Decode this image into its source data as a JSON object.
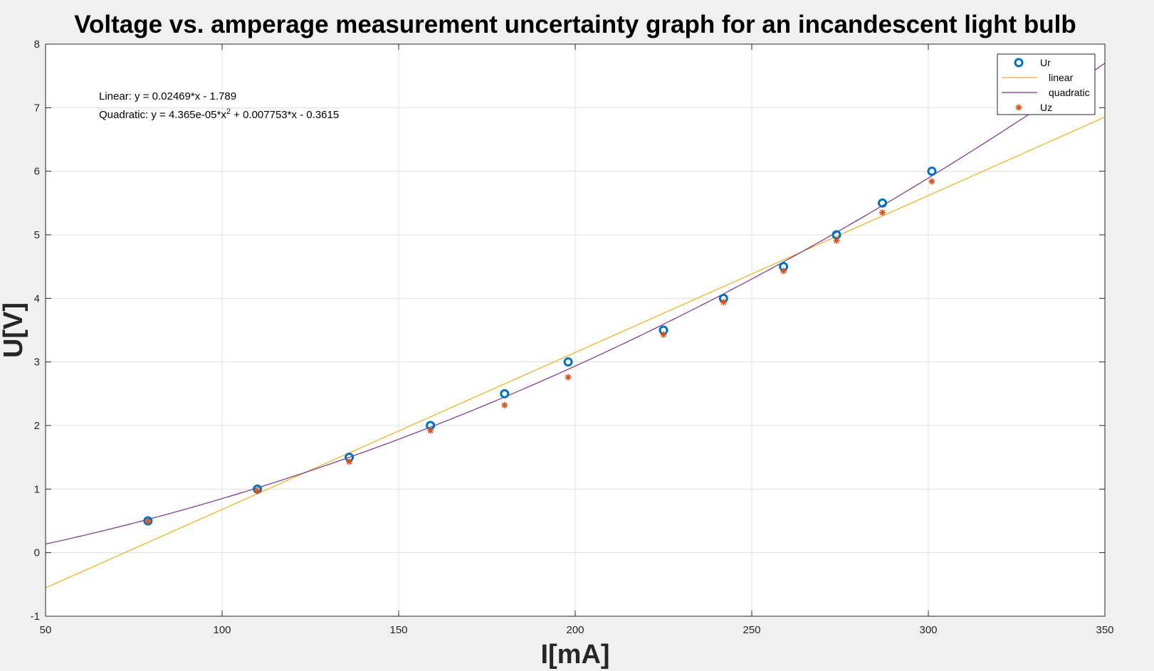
{
  "chart_data": {
    "type": "scatter",
    "title": "Voltage vs. amperage measurement uncertainty graph for an incandescent light bulb",
    "xlabel": "I[mA]",
    "ylabel": "U[V]",
    "xlim": [
      50,
      350
    ],
    "ylim": [
      -1,
      8
    ],
    "xticks": [
      50,
      100,
      150,
      200,
      250,
      300,
      350
    ],
    "yticks": [
      -1,
      0,
      1,
      2,
      3,
      4,
      5,
      6,
      7,
      8
    ],
    "grid": true,
    "legend_position": "top-right",
    "annotations": {
      "linear_prefix": "Linear:  y = 0.02469*x - 1.789",
      "quadratic_prefix": "Quadratic:  y = 4.365e-05*x",
      "quadratic_sup": "2",
      "quadratic_suffix": " + 0.007753*x - 0.3615"
    },
    "series": [
      {
        "name": "Ur",
        "kind": "scatter",
        "marker": "circle",
        "color": "#0072bd",
        "x": [
          79,
          110,
          136,
          159,
          180,
          198,
          225,
          242,
          259,
          274,
          287,
          301
        ],
        "y": [
          0.5,
          1.0,
          1.5,
          2.0,
          2.5,
          3.0,
          3.5,
          4.0,
          4.5,
          5.0,
          5.5,
          6.0
        ]
      },
      {
        "name": "linear",
        "kind": "line",
        "color": "#edb120",
        "coefficients": [
          0.02469,
          -1.789
        ]
      },
      {
        "name": "quadratic",
        "kind": "line",
        "color": "#7e2f8e",
        "coefficients": [
          4.365e-05,
          0.007753,
          -0.3615
        ]
      },
      {
        "name": "Uz",
        "kind": "scatter",
        "marker": "asterisk",
        "color": "#d95319",
        "x": [
          79,
          110,
          136,
          159,
          180,
          198,
          225,
          242,
          259,
          274,
          287,
          301
        ],
        "y": [
          0.49,
          0.97,
          1.43,
          1.92,
          2.32,
          2.76,
          3.43,
          3.94,
          4.43,
          4.91,
          5.35,
          5.84
        ]
      }
    ]
  }
}
